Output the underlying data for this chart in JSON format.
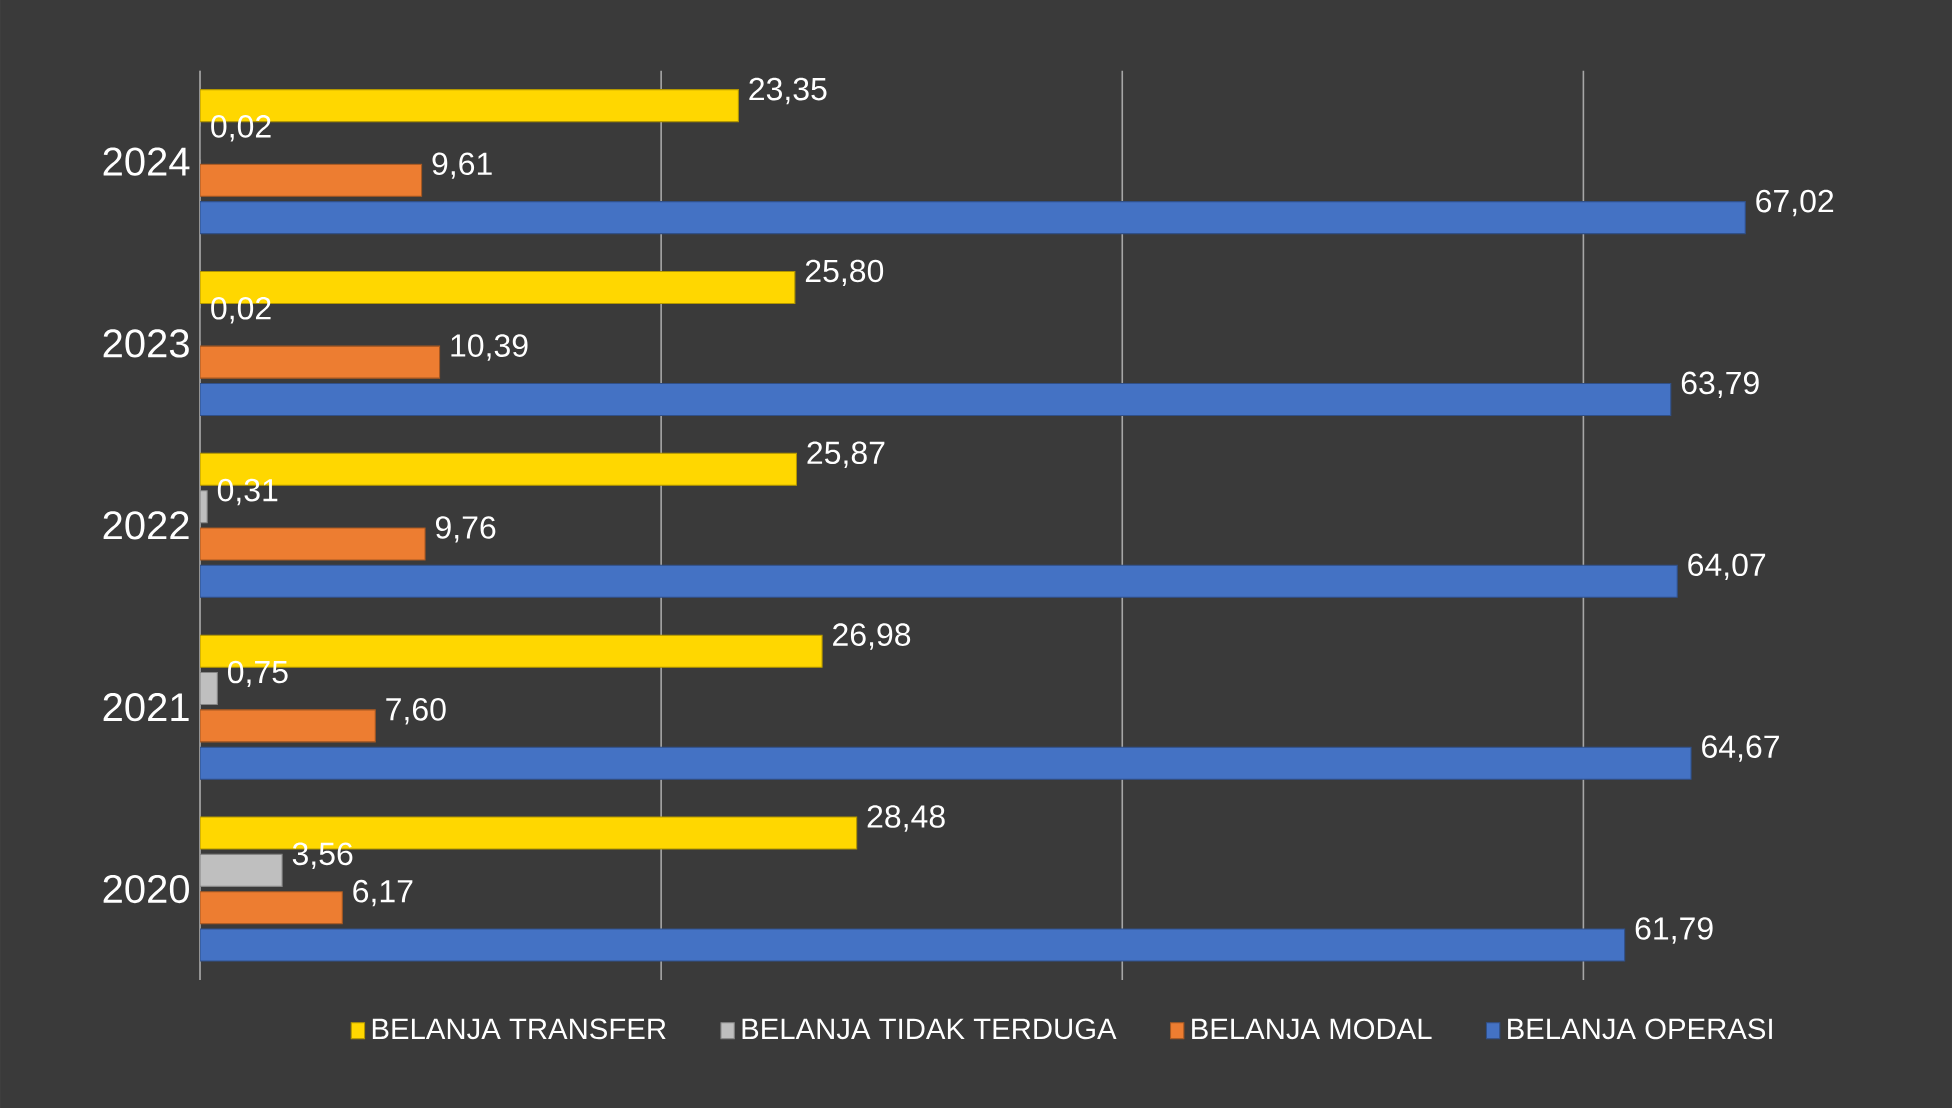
{
  "chart_data": {
    "type": "bar",
    "orientation": "horizontal",
    "categories": [
      "2024",
      "2023",
      "2022",
      "2021",
      "2020"
    ],
    "series": [
      {
        "name": "BELANJA TRANSFER",
        "color": "#ffd700",
        "values": [
          23.35,
          25.8,
          25.87,
          26.98,
          28.48
        ],
        "value_labels": [
          "23,35",
          "25,80",
          "25,87",
          "26,98",
          "28,48"
        ]
      },
      {
        "name": "BELANJA TIDAK TERDUGA",
        "color": "#bfbfbf",
        "values": [
          0.02,
          0.02,
          0.31,
          0.75,
          3.56
        ],
        "value_labels": [
          "0,02",
          "0,02",
          "0,31",
          "0,75",
          "3,56"
        ]
      },
      {
        "name": "BELANJA MODAL",
        "color": "#ed7d31",
        "values": [
          9.61,
          10.39,
          9.76,
          7.6,
          6.17
        ],
        "value_labels": [
          "9,61",
          "10,39",
          "9,76",
          "7,60",
          "6,17"
        ]
      },
      {
        "name": "BELANJA OPERASI",
        "color": "#4472c4",
        "values": [
          67.02,
          63.79,
          64.07,
          64.67,
          61.79
        ],
        "value_labels": [
          "67,02",
          "63,79",
          "64,07",
          "64,67",
          "61,79"
        ]
      }
    ],
    "grid": "x",
    "legend": "bottom",
    "tick_labels": "y"
  }
}
